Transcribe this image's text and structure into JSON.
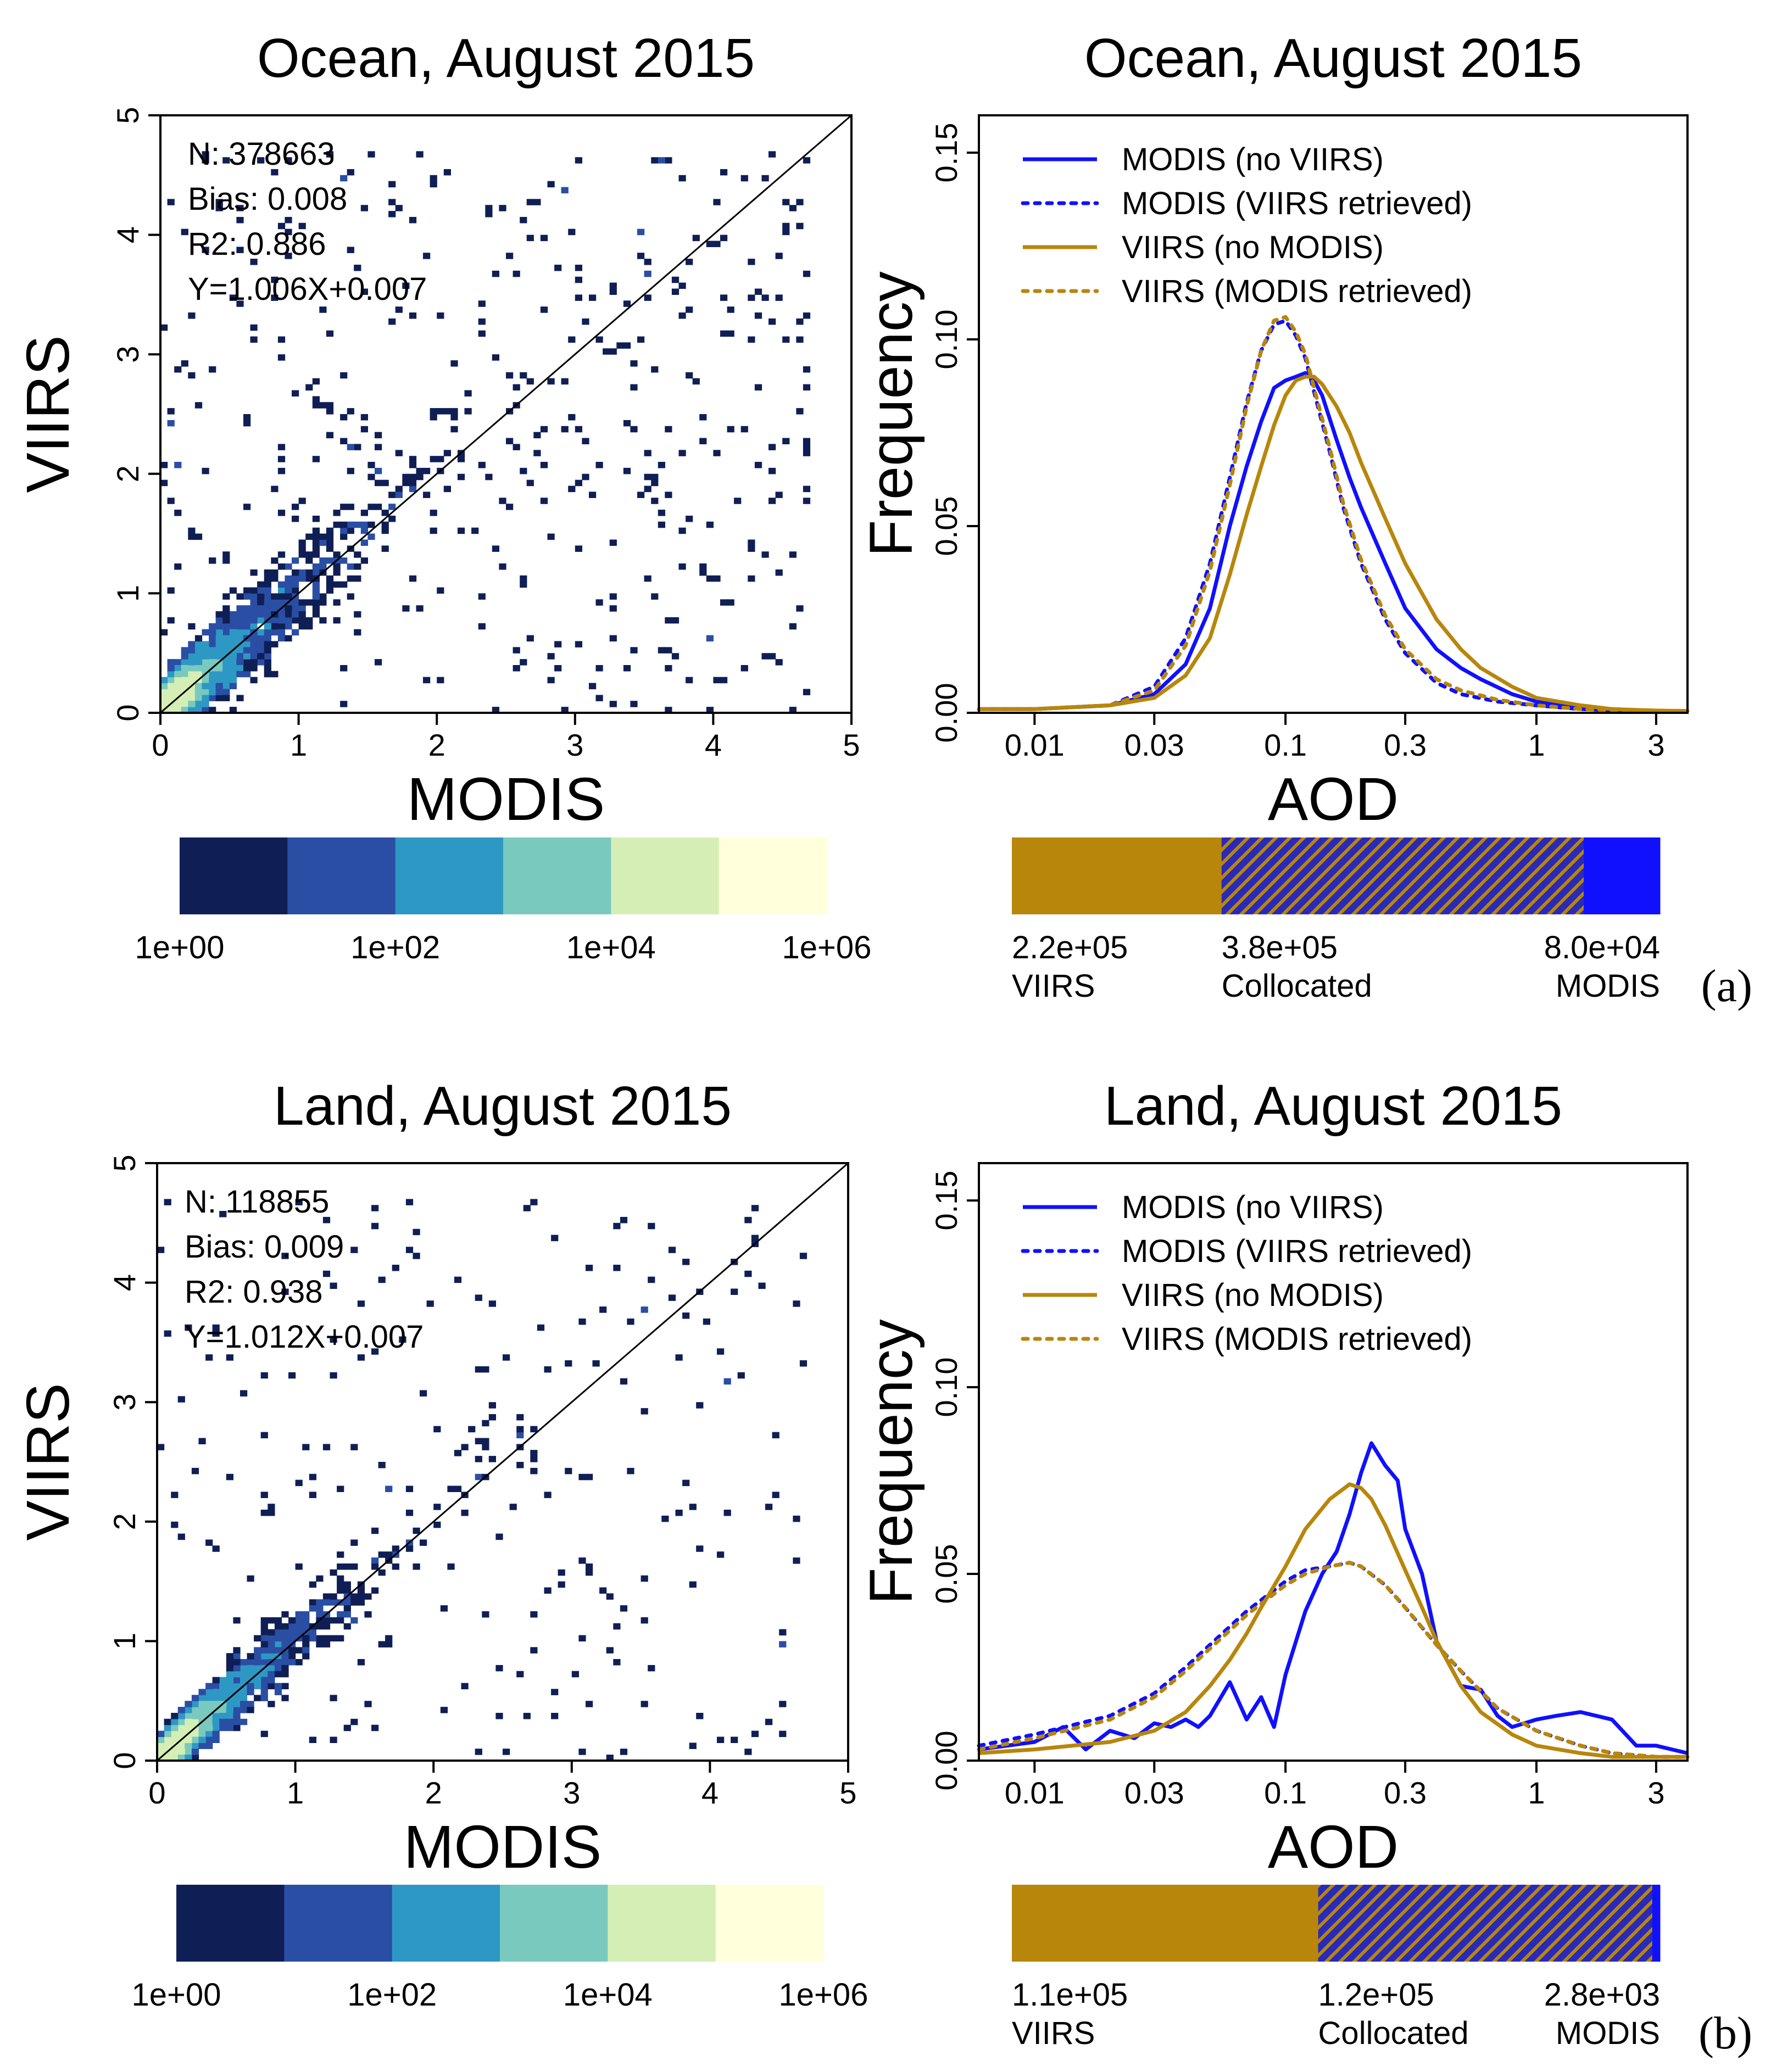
{
  "colors": {
    "modis": "#1010ff",
    "viirs": "#b8860b",
    "bins": [
      "#0f1f55",
      "#2a4ea4",
      "#2e98c4",
      "#79c9bf",
      "#d5eeb5",
      "#ffffdc"
    ]
  },
  "chart_data": [
    {
      "id": "a_scatter",
      "type": "heatmap",
      "title": "Ocean, August 2015",
      "xlabel": "MODIS",
      "ylabel": "VIIRS",
      "xlim": [
        0,
        5
      ],
      "ylim": [
        0,
        5
      ],
      "xticks": [
        "0",
        "1",
        "2",
        "3",
        "4",
        "5"
      ],
      "yticks": [
        "0",
        "1",
        "2",
        "3",
        "4",
        "5"
      ],
      "stats": [
        "N: 378663",
        "Bias: 0.008",
        "R2: 0.886",
        "Y=1.006X+0.007"
      ],
      "fit": {
        "slope": 1.006,
        "intercept": 0.007
      },
      "colorbar": {
        "labels": [
          "1e+00",
          "1e+02",
          "1e+04",
          "1e+06"
        ]
      },
      "seed": 17,
      "spread": 0.22,
      "outliers": 380
    },
    {
      "id": "a_hist",
      "type": "line",
      "title": "Ocean, August 2015",
      "xlabel": "AOD",
      "ylabel": "Frequency",
      "xscale": "log",
      "xlim": [
        0.006,
        4
      ],
      "ylim": [
        0,
        0.16
      ],
      "xticks": [
        "0.01",
        "0.03",
        "0.1",
        "0.3",
        "1",
        "3"
      ],
      "xtick_values": [
        0.01,
        0.03,
        0.1,
        0.3,
        1,
        3
      ],
      "yticks": [
        "0.00",
        "0.05",
        "0.10",
        "0.15"
      ],
      "ytick_values": [
        0,
        0.05,
        0.1,
        0.15
      ],
      "legend_position": "top-left",
      "series": [
        {
          "name": "MODIS (no VIIRS)",
          "color": "modis",
          "dash": false,
          "x": [
            0.006,
            0.01,
            0.02,
            0.03,
            0.04,
            0.05,
            0.06,
            0.07,
            0.08,
            0.09,
            0.1,
            0.11,
            0.12,
            0.13,
            0.14,
            0.16,
            0.18,
            0.2,
            0.25,
            0.3,
            0.4,
            0.5,
            0.6,
            0.8,
            1,
            1.5,
            2,
            3,
            4
          ],
          "y": [
            0.001,
            0.001,
            0.002,
            0.005,
            0.013,
            0.028,
            0.05,
            0.066,
            0.078,
            0.087,
            0.089,
            0.09,
            0.091,
            0.089,
            0.085,
            0.073,
            0.063,
            0.055,
            0.04,
            0.028,
            0.017,
            0.012,
            0.009,
            0.005,
            0.003,
            0.0015,
            0.001,
            0.0005,
            0.0005
          ]
        },
        {
          "name": "MODIS (VIIRS retrieved)",
          "color": "modis",
          "dash": true,
          "x": [
            0.006,
            0.01,
            0.02,
            0.03,
            0.04,
            0.05,
            0.06,
            0.07,
            0.08,
            0.09,
            0.1,
            0.11,
            0.12,
            0.13,
            0.15,
            0.17,
            0.2,
            0.25,
            0.3,
            0.4,
            0.5,
            0.7,
            1,
            1.5,
            2,
            3,
            4
          ],
          "y": [
            0.001,
            0.001,
            0.002,
            0.007,
            0.02,
            0.04,
            0.063,
            0.083,
            0.097,
            0.104,
            0.105,
            0.101,
            0.095,
            0.086,
            0.07,
            0.055,
            0.04,
            0.025,
            0.016,
            0.008,
            0.005,
            0.003,
            0.002,
            0.001,
            0.0007,
            0.0005,
            0.0005
          ]
        },
        {
          "name": "VIIRS (no MODIS)",
          "color": "viirs",
          "dash": false,
          "x": [
            0.006,
            0.01,
            0.02,
            0.03,
            0.04,
            0.05,
            0.06,
            0.07,
            0.08,
            0.09,
            0.1,
            0.11,
            0.12,
            0.13,
            0.14,
            0.16,
            0.18,
            0.2,
            0.25,
            0.3,
            0.4,
            0.5,
            0.6,
            0.8,
            1,
            1.5,
            2,
            3,
            4
          ],
          "y": [
            0.001,
            0.001,
            0.002,
            0.004,
            0.01,
            0.02,
            0.037,
            0.053,
            0.066,
            0.077,
            0.085,
            0.089,
            0.09,
            0.09,
            0.088,
            0.082,
            0.075,
            0.067,
            0.052,
            0.04,
            0.025,
            0.017,
            0.012,
            0.007,
            0.004,
            0.002,
            0.001,
            0.0006,
            0.0005
          ]
        },
        {
          "name": "VIIRS (MODIS retrieved)",
          "color": "viirs",
          "dash": true,
          "x": [
            0.006,
            0.01,
            0.02,
            0.03,
            0.04,
            0.05,
            0.06,
            0.07,
            0.08,
            0.09,
            0.1,
            0.11,
            0.12,
            0.13,
            0.15,
            0.17,
            0.2,
            0.25,
            0.3,
            0.4,
            0.5,
            0.7,
            1,
            1.5,
            2,
            3,
            4
          ],
          "y": [
            0.001,
            0.001,
            0.002,
            0.006,
            0.018,
            0.038,
            0.061,
            0.082,
            0.097,
            0.105,
            0.106,
            0.102,
            0.096,
            0.087,
            0.071,
            0.056,
            0.041,
            0.026,
            0.017,
            0.009,
            0.006,
            0.0035,
            0.002,
            0.001,
            0.0007,
            0.0005,
            0.0005
          ]
        }
      ],
      "counts": [
        {
          "value": "2.2e+05",
          "label": "VIIRS",
          "count": 220000,
          "color": "viirs"
        },
        {
          "value": "3.8e+05",
          "label": "Collocated",
          "count": 380000,
          "color": "hatch"
        },
        {
          "value": "8.0e+04",
          "label": "MODIS",
          "count": 80000,
          "color": "modis"
        }
      ],
      "panel_label": "(a)"
    },
    {
      "id": "b_scatter",
      "type": "heatmap",
      "title": "Land, August 2015",
      "xlabel": "MODIS",
      "ylabel": "VIIRS",
      "xlim": [
        0,
        5
      ],
      "ylim": [
        0,
        5
      ],
      "xticks": [
        "0",
        "1",
        "2",
        "3",
        "4",
        "5"
      ],
      "yticks": [
        "0",
        "1",
        "2",
        "3",
        "4",
        "5"
      ],
      "stats": [
        "N: 118855",
        "Bias: 0.009",
        "R2: 0.938",
        "Y=1.012X+0.007"
      ],
      "fit": {
        "slope": 1.012,
        "intercept": 0.007
      },
      "colorbar": {
        "labels": [
          "1e+00",
          "1e+02",
          "1e+04",
          "1e+06"
        ]
      },
      "seed": 42,
      "spread": 0.16,
      "outliers": 220
    },
    {
      "id": "b_hist",
      "type": "line",
      "title": "Land, August 2015",
      "xlabel": "AOD",
      "ylabel": "Frequency",
      "xscale": "log",
      "xlim": [
        0.006,
        4
      ],
      "ylim": [
        0,
        0.16
      ],
      "xticks": [
        "0.01",
        "0.03",
        "0.1",
        "0.3",
        "1",
        "3"
      ],
      "xtick_values": [
        0.01,
        0.03,
        0.1,
        0.3,
        1,
        3
      ],
      "yticks": [
        "0.00",
        "0.05",
        "0.10",
        "0.15"
      ],
      "ytick_values": [
        0,
        0.05,
        0.1,
        0.15
      ],
      "legend_position": "top-left",
      "series": [
        {
          "name": "MODIS (no VIIRS)",
          "color": "modis",
          "dash": false,
          "x": [
            0.006,
            0.01,
            0.013,
            0.016,
            0.02,
            0.025,
            0.03,
            0.035,
            0.04,
            0.045,
            0.05,
            0.06,
            0.07,
            0.08,
            0.09,
            0.1,
            0.12,
            0.14,
            0.16,
            0.18,
            0.2,
            0.22,
            0.25,
            0.28,
            0.3,
            0.35,
            0.4,
            0.5,
            0.6,
            0.7,
            0.8,
            1,
            1.2,
            1.5,
            2,
            2.5,
            3,
            4
          ],
          "y": [
            0.003,
            0.005,
            0.009,
            0.003,
            0.008,
            0.006,
            0.01,
            0.009,
            0.011,
            0.009,
            0.012,
            0.021,
            0.011,
            0.017,
            0.009,
            0.023,
            0.04,
            0.05,
            0.056,
            0.066,
            0.077,
            0.085,
            0.079,
            0.075,
            0.062,
            0.05,
            0.032,
            0.02,
            0.019,
            0.012,
            0.009,
            0.011,
            0.012,
            0.013,
            0.011,
            0.004,
            0.004,
            0.002
          ]
        },
        {
          "name": "MODIS (VIIRS retrieved)",
          "color": "modis",
          "dash": true,
          "x": [
            0.006,
            0.01,
            0.02,
            0.03,
            0.04,
            0.05,
            0.07,
            0.1,
            0.12,
            0.15,
            0.18,
            0.2,
            0.25,
            0.3,
            0.4,
            0.5,
            0.7,
            1,
            1.5,
            2,
            3,
            4
          ],
          "y": [
            0.004,
            0.007,
            0.012,
            0.018,
            0.025,
            0.031,
            0.04,
            0.048,
            0.051,
            0.052,
            0.053,
            0.052,
            0.047,
            0.041,
            0.031,
            0.024,
            0.014,
            0.008,
            0.004,
            0.002,
            0.001,
            0.001
          ]
        },
        {
          "name": "VIIRS (no MODIS)",
          "color": "viirs",
          "dash": false,
          "x": [
            0.006,
            0.01,
            0.02,
            0.03,
            0.04,
            0.05,
            0.06,
            0.07,
            0.08,
            0.1,
            0.12,
            0.15,
            0.18,
            0.2,
            0.22,
            0.25,
            0.3,
            0.35,
            0.4,
            0.5,
            0.6,
            0.8,
            1,
            1.5,
            2,
            3,
            4
          ],
          "y": [
            0.002,
            0.003,
            0.005,
            0.008,
            0.013,
            0.02,
            0.027,
            0.034,
            0.041,
            0.052,
            0.062,
            0.07,
            0.074,
            0.073,
            0.07,
            0.063,
            0.051,
            0.041,
            0.032,
            0.02,
            0.013,
            0.007,
            0.004,
            0.002,
            0.001,
            0.001,
            0.001
          ]
        },
        {
          "name": "VIIRS (MODIS retrieved)",
          "color": "viirs",
          "dash": true,
          "x": [
            0.006,
            0.01,
            0.02,
            0.03,
            0.04,
            0.05,
            0.07,
            0.1,
            0.12,
            0.15,
            0.18,
            0.2,
            0.25,
            0.3,
            0.4,
            0.5,
            0.7,
            1,
            1.5,
            2,
            3,
            4
          ],
          "y": [
            0.003,
            0.006,
            0.011,
            0.017,
            0.024,
            0.03,
            0.039,
            0.047,
            0.05,
            0.052,
            0.053,
            0.052,
            0.047,
            0.041,
            0.031,
            0.024,
            0.014,
            0.008,
            0.004,
            0.002,
            0.001,
            0.001
          ]
        }
      ],
      "counts": [
        {
          "value": "1.1e+05",
          "label": "VIIRS",
          "count": 110000,
          "color": "viirs"
        },
        {
          "value": "1.2e+05",
          "label": "Collocated",
          "count": 120000,
          "color": "hatch"
        },
        {
          "value": "2.8e+03",
          "label": "MODIS",
          "count": 2800,
          "color": "modis"
        }
      ],
      "panel_label": "(b)"
    }
  ]
}
